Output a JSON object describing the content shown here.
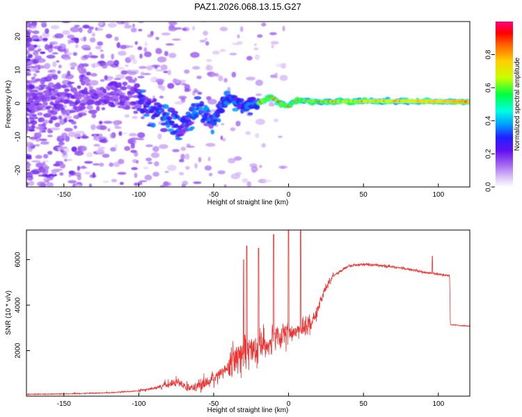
{
  "chart_data": [
    {
      "type": "heatmap",
      "title": "PAZ1.2026.068.13.15.G27",
      "xlabel": "Height of straight line (km)",
      "ylabel": "Frequency (Hz)",
      "xlim": [
        -175,
        121
      ],
      "ylim": [
        -25,
        24.5
      ],
      "xticks": [
        -150,
        -100,
        -50,
        0,
        50,
        100
      ],
      "yticks": [
        -20,
        -10,
        0,
        10,
        20
      ],
      "colorbar": {
        "label": "Normalized spectral amplitude",
        "range": [
          0,
          1
        ],
        "ticks": [
          0.0,
          0.2,
          0.4,
          0.6,
          0.8
        ]
      },
      "colormap": [
        "#ffffff",
        "#d8c0f8",
        "#a060f0",
        "#6010f0",
        "#2020ff",
        "#00a0ff",
        "#00ffe0",
        "#00ff40",
        "#c8ff00",
        "#ffd000",
        "#ff6000",
        "#ff0000",
        "#ff0080"
      ],
      "ridge": [
        {
          "x": -175,
          "f": 0
        },
        {
          "x": -130,
          "f": 2
        },
        {
          "x": -110,
          "f": 3
        },
        {
          "x": -100,
          "f": 1
        },
        {
          "x": -90,
          "f": -2
        },
        {
          "x": -80,
          "f": -5
        },
        {
          "x": -72,
          "f": -7
        },
        {
          "x": -65,
          "f": -4
        },
        {
          "x": -60,
          "f": -1
        },
        {
          "x": -55,
          "f": -3
        },
        {
          "x": -50,
          "f": -5
        },
        {
          "x": -45,
          "f": -1
        },
        {
          "x": -38,
          "f": 2
        },
        {
          "x": -30,
          "f": -1
        },
        {
          "x": -20,
          "f": 0
        },
        {
          "x": -12,
          "f": 2
        },
        {
          "x": -5,
          "f": 0
        },
        {
          "x": 0,
          "f": -1
        },
        {
          "x": 5,
          "f": 1
        },
        {
          "x": 20,
          "f": 0.5
        },
        {
          "x": 60,
          "f": 0.7
        },
        {
          "x": 100,
          "f": 0.6
        },
        {
          "x": 121,
          "f": 0.5
        }
      ]
    },
    {
      "type": "line",
      "xlabel": "Height of straight line (km)",
      "ylabel": "SNR (10 * v/v)",
      "xlim": [
        -175,
        121
      ],
      "ylim": [
        0,
        7300
      ],
      "xticks": [
        -150,
        -100,
        -50,
        0,
        50,
        100
      ],
      "yticks": [
        2000,
        4000,
        6000
      ],
      "color": "#ee3333",
      "trend": [
        {
          "x": -175,
          "y": 80
        },
        {
          "x": -150,
          "y": 100
        },
        {
          "x": -120,
          "y": 150
        },
        {
          "x": -100,
          "y": 230
        },
        {
          "x": -85,
          "y": 420
        },
        {
          "x": -75,
          "y": 600
        },
        {
          "x": -65,
          "y": 380
        },
        {
          "x": -55,
          "y": 560
        },
        {
          "x": -45,
          "y": 1000
        },
        {
          "x": -35,
          "y": 1700
        },
        {
          "x": -25,
          "y": 2100
        },
        {
          "x": -15,
          "y": 2300
        },
        {
          "x": -5,
          "y": 2550
        },
        {
          "x": 5,
          "y": 2850
        },
        {
          "x": 15,
          "y": 3200
        },
        {
          "x": 20,
          "y": 3900
        },
        {
          "x": 25,
          "y": 4800
        },
        {
          "x": 30,
          "y": 5300
        },
        {
          "x": 40,
          "y": 5720
        },
        {
          "x": 50,
          "y": 5800
        },
        {
          "x": 60,
          "y": 5750
        },
        {
          "x": 70,
          "y": 5680
        },
        {
          "x": 80,
          "y": 5580
        },
        {
          "x": 90,
          "y": 5450
        },
        {
          "x": 100,
          "y": 5350
        },
        {
          "x": 107.5,
          "y": 5300
        },
        {
          "x": 108,
          "y": 3150
        },
        {
          "x": 115,
          "y": 3100
        },
        {
          "x": 121,
          "y": 3080
        }
      ],
      "spikes": [
        {
          "x": -30,
          "y": 6000
        },
        {
          "x": -28,
          "y": 6600
        },
        {
          "x": -20,
          "y": 6500
        },
        {
          "x": -10,
          "y": 7100
        },
        {
          "x": 0,
          "y": 7300
        },
        {
          "x": 8,
          "y": 7300
        },
        {
          "x": 96,
          "y": 6150
        }
      ]
    }
  ]
}
